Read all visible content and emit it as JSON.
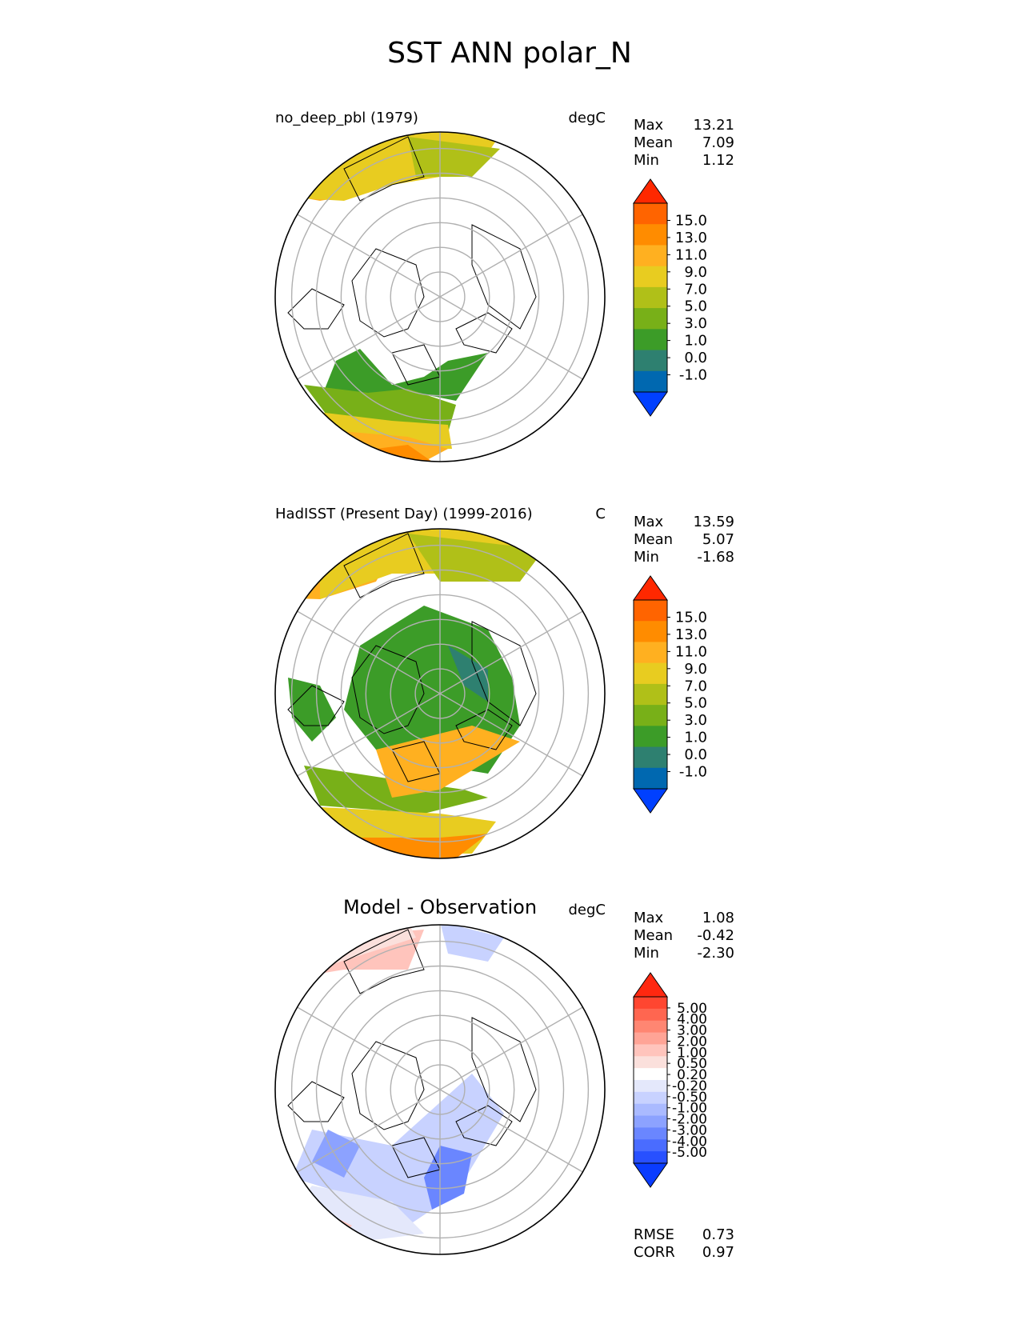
{
  "title": "SST ANN polar_N",
  "panels": [
    {
      "left_title": "no_deep_pbl (1979)",
      "right_title": "degC",
      "stats": [
        {
          "label": "Max",
          "value": "13.21"
        },
        {
          "label": "Mean",
          "value": "7.09"
        },
        {
          "label": "Min",
          "value": "1.12"
        }
      ],
      "colorbar_ticks": [
        "15.0",
        "13.0",
        "11.0",
        "9.0",
        "7.0",
        "5.0",
        "3.0",
        "1.0",
        "0.0",
        "-1.0"
      ]
    },
    {
      "left_title": "HadISST (Present Day) (1999-2016)",
      "right_title": "C",
      "stats": [
        {
          "label": "Max",
          "value": "13.59"
        },
        {
          "label": "Mean",
          "value": "5.07"
        },
        {
          "label": "Min",
          "value": "-1.68"
        }
      ],
      "colorbar_ticks": [
        "15.0",
        "13.0",
        "11.0",
        "9.0",
        "7.0",
        "5.0",
        "3.0",
        "1.0",
        "0.0",
        "-1.0"
      ]
    },
    {
      "center_title": "Model - Observation",
      "right_title": "degC",
      "stats": [
        {
          "label": "Max",
          "value": "1.08"
        },
        {
          "label": "Mean",
          "value": "-0.42"
        },
        {
          "label": "Min",
          "value": "-2.30"
        }
      ],
      "colorbar_ticks": [
        "5.00",
        "4.00",
        "3.00",
        "2.00",
        "1.00",
        "0.50",
        "0.20",
        "-0.20",
        "-0.50",
        "-1.00",
        "-2.00",
        "-3.00",
        "-4.00",
        "-5.00"
      ],
      "metrics": [
        {
          "label": "RMSE",
          "value": "0.73"
        },
        {
          "label": "CORR",
          "value": "0.97"
        }
      ]
    }
  ],
  "colors": {
    "sst_levels": [
      "#0040ff",
      "#0068b0",
      "#2e8070",
      "#3c9c28",
      "#78b018",
      "#b0c018",
      "#e8cc20",
      "#ffb020",
      "#ff8c00",
      "#ff6400",
      "#ff2800"
    ],
    "diff_levels": [
      "#0a3cff",
      "#2850ff",
      "#4a6cff",
      "#6a86ff",
      "#8ca2ff",
      "#aabaff",
      "#c8d2ff",
      "#e4e8fb",
      "#ffffff",
      "#fbe0dc",
      "#ffc4bc",
      "#ffa496",
      "#ff8672",
      "#ff6650",
      "#ff4630",
      "#ff2810"
    ],
    "grid": "#b0b0b0"
  },
  "chart_data": [
    {
      "type": "heatmap",
      "projection": "north-polar-stereographic",
      "title": "no_deep_pbl (1979)",
      "units": "degC",
      "stats": {
        "max": 13.21,
        "mean": 7.09,
        "min": 1.12
      },
      "levels": [
        -1.0,
        0.0,
        1.0,
        3.0,
        5.0,
        7.0,
        9.0,
        11.0,
        13.0,
        15.0
      ],
      "extend": "both"
    },
    {
      "type": "heatmap",
      "projection": "north-polar-stereographic",
      "title": "HadISST (Present Day) (1999-2016)",
      "units": "C",
      "stats": {
        "max": 13.59,
        "mean": 5.07,
        "min": -1.68
      },
      "levels": [
        -1.0,
        0.0,
        1.0,
        3.0,
        5.0,
        7.0,
        9.0,
        11.0,
        13.0,
        15.0
      ],
      "extend": "both"
    },
    {
      "type": "heatmap",
      "projection": "north-polar-stereographic",
      "title": "Model - Observation",
      "units": "degC",
      "stats": {
        "max": 1.08,
        "mean": -0.42,
        "min": -2.3
      },
      "levels": [
        -5.0,
        -4.0,
        -3.0,
        -2.0,
        -1.0,
        -0.5,
        -0.2,
        0.2,
        0.5,
        1.0,
        2.0,
        3.0,
        4.0,
        5.0
      ],
      "extend": "both",
      "rmse": 0.73,
      "corr": 0.97
    }
  ]
}
